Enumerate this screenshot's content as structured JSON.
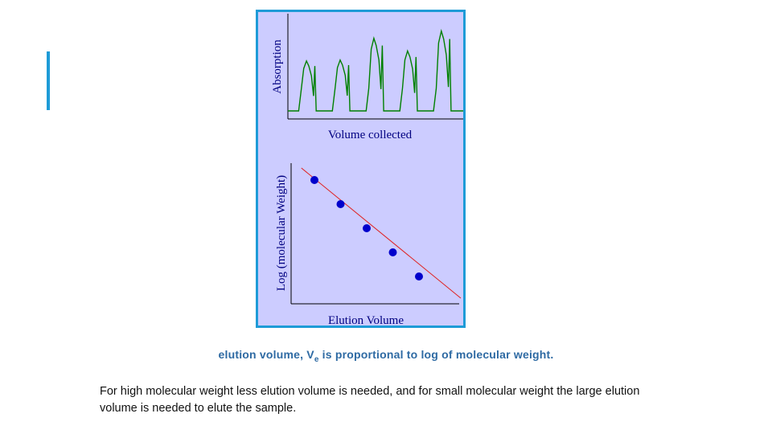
{
  "colors": {
    "accent": "#1e9bd7",
    "figure_bg": "#ccccff",
    "peak_line": "#008000",
    "fit_line": "#e02020",
    "points": "#0000cc",
    "caption": "#2e6aa3"
  },
  "caption": {
    "prefix": "elution volume, V",
    "subscript": "e",
    "suffix": " is proportional to log of molecular weight."
  },
  "body": {
    "paragraph": "For high molecular weight less elution volume is needed, and for small molecular weight the large elution volume is needed to elute the sample."
  },
  "chart_data": [
    {
      "type": "line",
      "title": "",
      "xlabel": "Volume collected",
      "ylabel": "Absorption",
      "grid": false,
      "peaks": [
        {
          "center": 1,
          "height": 0.55
        },
        {
          "center": 2,
          "height": 0.56
        },
        {
          "center": 3,
          "height": 0.8
        },
        {
          "center": 4,
          "height": 0.66
        },
        {
          "center": 5,
          "height": 0.88
        }
      ]
    },
    {
      "type": "scatter",
      "title": "",
      "xlabel": "Elution Volume",
      "ylabel": "Log (molecular Weight)",
      "grid": false,
      "x": [
        1,
        2,
        3,
        4,
        5
      ],
      "y": [
        5,
        4,
        3,
        2,
        1
      ],
      "fit_line": true
    }
  ]
}
